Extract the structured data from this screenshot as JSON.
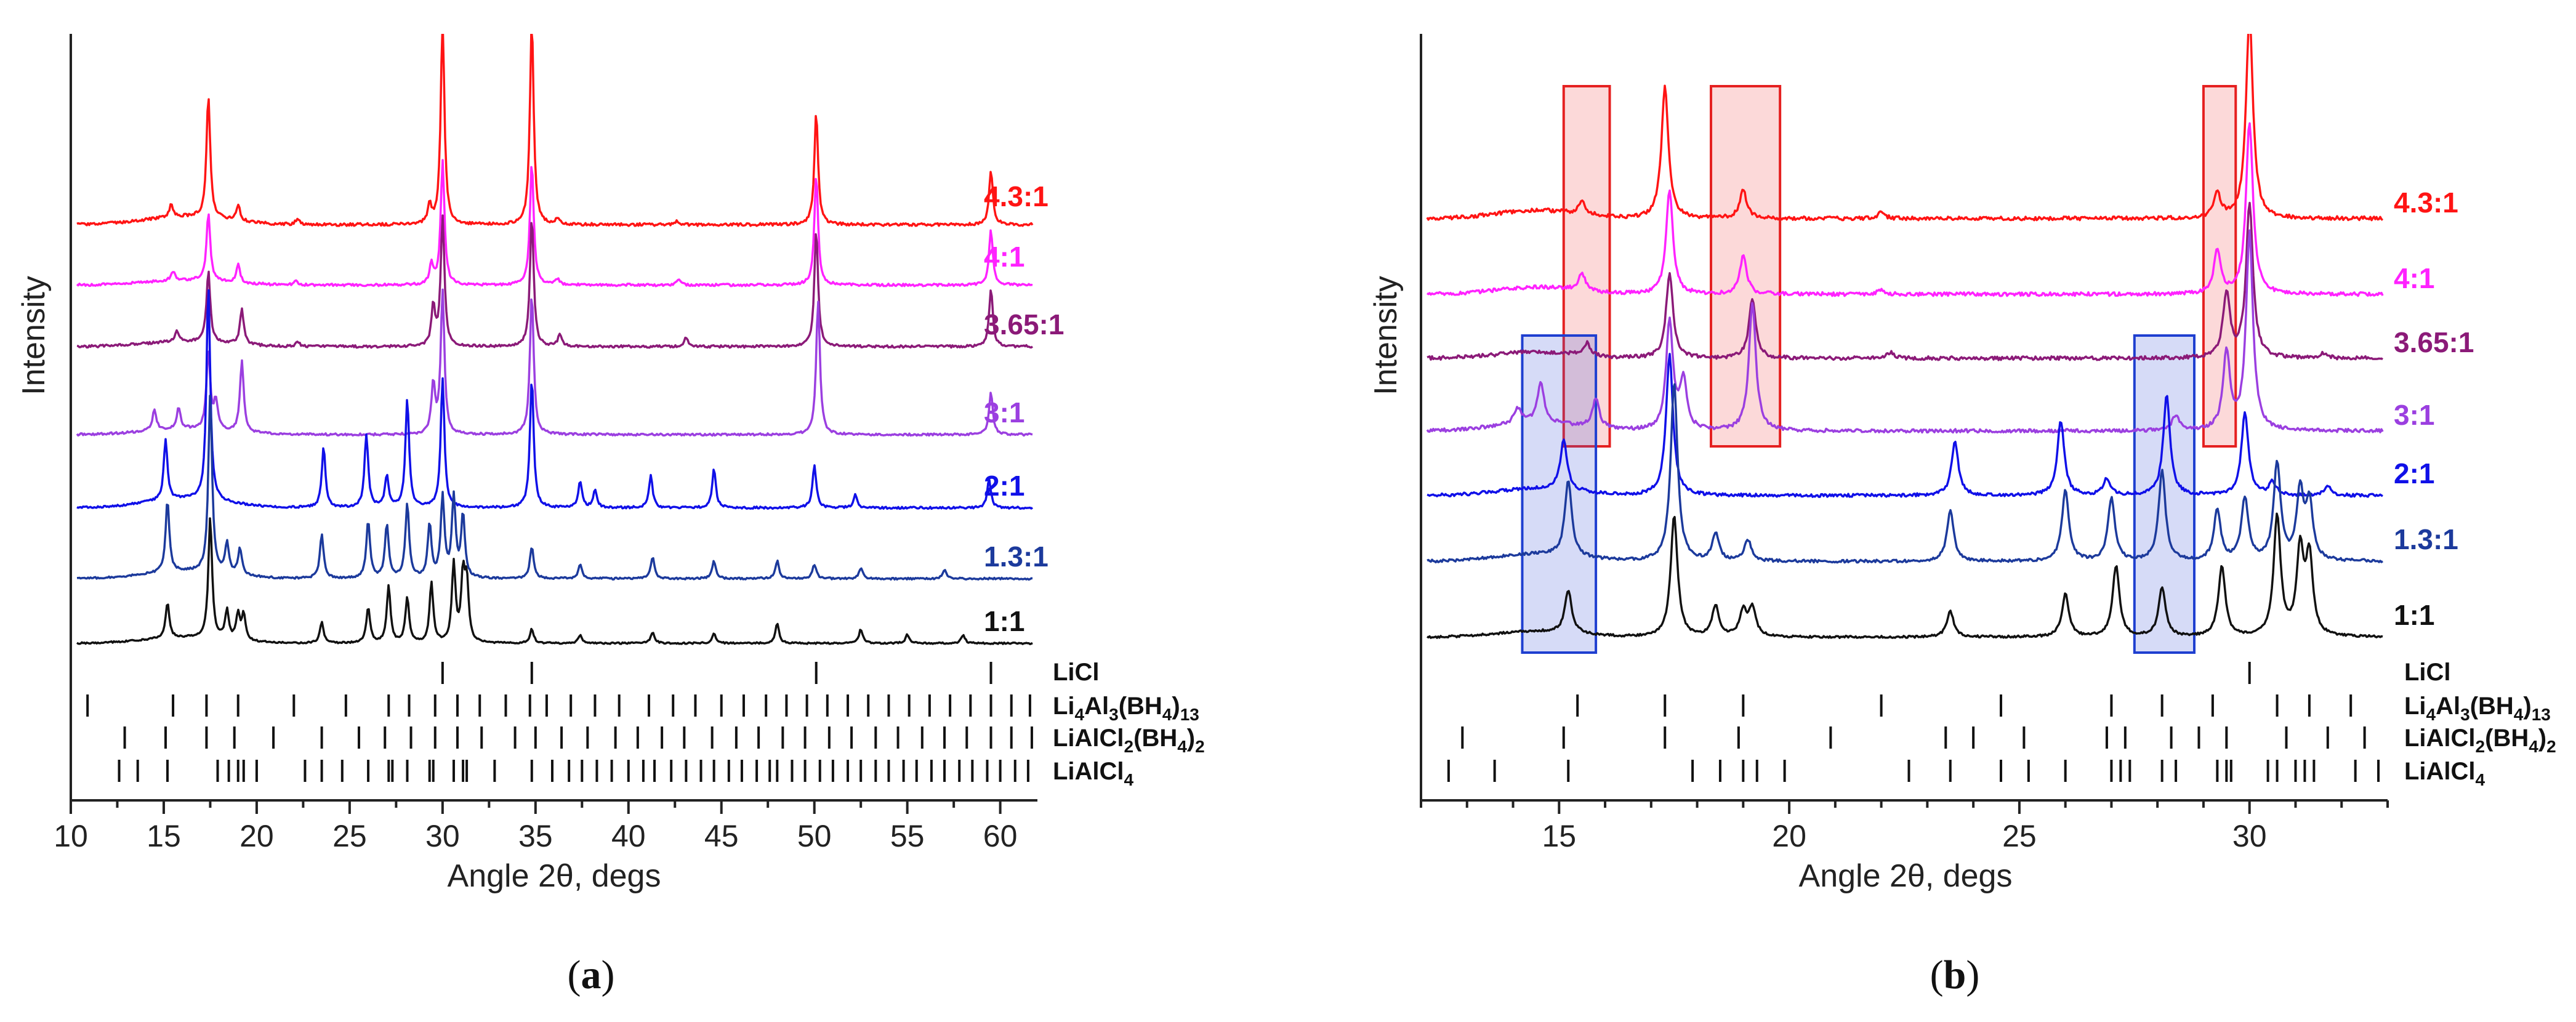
{
  "colors": {
    "4.3:1": "#ff1414",
    "4:1": "#ff22ff",
    "3.65:1": "#8b1a78",
    "3:1": "#9b3fe0",
    "2:1": "#1010e8",
    "1.3:1": "#1c3a9c",
    "1:1": "#111111",
    "red_box": "#e52020",
    "blue_box": "#1f3fd0"
  },
  "chart_data": [
    {
      "panel": "a",
      "type": "line",
      "title": "",
      "xlabel": "Angle 2θ, degs",
      "ylabel": "Intensity",
      "xlim": [
        10,
        62
      ],
      "x_ticks": [
        10,
        15,
        20,
        25,
        30,
        35,
        40,
        45,
        50,
        55,
        60
      ],
      "grid": false,
      "series": [
        {
          "name": "4.3:1",
          "peaks": [
            [
              15.4,
              6
            ],
            [
              17.4,
              60
            ],
            [
              19.0,
              8
            ],
            [
              22.2,
              3
            ],
            [
              29.3,
              9
            ],
            [
              30.0,
              100
            ],
            [
              34.8,
              100
            ],
            [
              36.2,
              3
            ],
            [
              42.6,
              2
            ],
            [
              50.1,
              55
            ],
            [
              59.5,
              27
            ]
          ]
        },
        {
          "name": "4:1",
          "peaks": [
            [
              15.5,
              7
            ],
            [
              17.4,
              55
            ],
            [
              19.0,
              15
            ],
            [
              22.1,
              3
            ],
            [
              29.4,
              16
            ],
            [
              30.0,
              100
            ],
            [
              34.8,
              100
            ],
            [
              36.2,
              5
            ],
            [
              42.7,
              4
            ],
            [
              50.1,
              90
            ],
            [
              59.5,
              45
            ]
          ]
        },
        {
          "name": "3.65:1",
          "peaks": [
            [
              15.7,
              8
            ],
            [
              17.4,
              55
            ],
            [
              19.2,
              28
            ],
            [
              22.2,
              4
            ],
            [
              29.5,
              30
            ],
            [
              30.0,
              100
            ],
            [
              34.8,
              100
            ],
            [
              36.3,
              9
            ],
            [
              43.1,
              7
            ],
            [
              50.1,
              90
            ],
            [
              59.5,
              45
            ]
          ]
        },
        {
          "name": "3:1",
          "peaks": [
            [
              14.5,
              15
            ],
            [
              15.8,
              15
            ],
            [
              17.4,
              55
            ],
            [
              17.8,
              20
            ],
            [
              19.2,
              50
            ],
            [
              29.5,
              35
            ],
            [
              30.0,
              100
            ],
            [
              34.8,
              100
            ],
            [
              50.2,
              95
            ],
            [
              59.5,
              30
            ]
          ]
        },
        {
          "name": "2:1",
          "peaks": [
            [
              15.1,
              28
            ],
            [
              17.4,
              100
            ],
            [
              23.6,
              28
            ],
            [
              25.9,
              34
            ],
            [
              27.0,
              15
            ],
            [
              28.1,
              50
            ],
            [
              30.0,
              60
            ],
            [
              34.8,
              60
            ],
            [
              37.4,
              12
            ],
            [
              38.2,
              8
            ],
            [
              41.2,
              15
            ],
            [
              44.6,
              18
            ],
            [
              50.0,
              20
            ],
            [
              52.2,
              6
            ],
            [
              59.4,
              13
            ]
          ]
        },
        {
          "name": "1.3:1",
          "peaks": [
            [
              15.2,
              40
            ],
            [
              17.5,
              100
            ],
            [
              18.4,
              17
            ],
            [
              19.1,
              15
            ],
            [
              23.5,
              25
            ],
            [
              26.0,
              32
            ],
            [
              27.0,
              30
            ],
            [
              28.1,
              42
            ],
            [
              29.3,
              30
            ],
            [
              30.0,
              45
            ],
            [
              30.6,
              45
            ],
            [
              31.1,
              35
            ],
            [
              34.8,
              18
            ],
            [
              37.4,
              8
            ],
            [
              41.3,
              12
            ],
            [
              44.6,
              10
            ],
            [
              48.0,
              10
            ],
            [
              50.0,
              8
            ],
            [
              52.5,
              6
            ],
            [
              57.0,
              5
            ]
          ]
        },
        {
          "name": "1:1",
          "peaks": [
            [
              15.2,
              25
            ],
            [
              17.5,
              85
            ],
            [
              18.4,
              20
            ],
            [
              19.0,
              18
            ],
            [
              19.3,
              18
            ],
            [
              23.5,
              15
            ],
            [
              26.0,
              25
            ],
            [
              27.1,
              40
            ],
            [
              28.1,
              32
            ],
            [
              29.4,
              42
            ],
            [
              30.6,
              55
            ],
            [
              31.1,
              45
            ],
            [
              31.3,
              40
            ],
            [
              34.8,
              10
            ],
            [
              37.4,
              6
            ],
            [
              41.3,
              8
            ],
            [
              44.6,
              7
            ],
            [
              48.0,
              14
            ],
            [
              52.5,
              10
            ],
            [
              55.0,
              6
            ],
            [
              58.0,
              6
            ]
          ]
        }
      ],
      "references": [
        {
          "name": "LiCl",
          "positions": [
            30.0,
            34.8,
            50.1,
            59.5
          ]
        },
        {
          "name": "Li4Al3(BH4)13",
          "positions": [
            10.9,
            15.5,
            17.3,
            19.0,
            22.0,
            24.8,
            27.1,
            28.2,
            29.6,
            30.8,
            32.0,
            33.4,
            34.7,
            35.6,
            36.9,
            38.2,
            39.5,
            41.1,
            42.4,
            43.6,
            45.0,
            46.2,
            47.4,
            48.5,
            49.6,
            50.7,
            51.8,
            52.9,
            54.0,
            55.1,
            56.2,
            57.3,
            58.4,
            59.5,
            60.6,
            61.6
          ]
        },
        {
          "name": "LiAlCl2(BH4)2",
          "positions": [
            12.9,
            15.1,
            17.3,
            18.8,
            20.9,
            23.5,
            25.5,
            26.9,
            28.3,
            29.6,
            30.8,
            32.1,
            33.9,
            35.0,
            36.4,
            37.8,
            39.3,
            40.5,
            41.8,
            43.0,
            44.5,
            45.8,
            47.0,
            48.3,
            49.5,
            50.8,
            52.0,
            53.3,
            54.5,
            55.8,
            57.0,
            58.2,
            59.5,
            60.6,
            61.7
          ]
        },
        {
          "name": "LiAlCl4",
          "positions": [
            12.6,
            13.6,
            15.2,
            17.9,
            18.5,
            19.0,
            19.3,
            20.0,
            22.6,
            23.5,
            24.6,
            26.0,
            27.1,
            27.3,
            28.1,
            29.3,
            29.5,
            30.6,
            31.1,
            31.3,
            32.8,
            34.8,
            35.9,
            36.8,
            37.5,
            38.3,
            39.1,
            40.0,
            40.8,
            41.4,
            42.3,
            43.1,
            43.9,
            44.6,
            45.4,
            46.1,
            46.9,
            47.6,
            48.0,
            48.8,
            49.5,
            50.3,
            51.0,
            51.8,
            52.5,
            53.3,
            54.0,
            54.8,
            55.5,
            56.3,
            57.0,
            57.8,
            58.5,
            59.3,
            60.0,
            60.8,
            61.5
          ]
        }
      ],
      "legend_placement": "right-of-curves"
    },
    {
      "panel": "b",
      "type": "line",
      "title": "",
      "xlabel": "Angle 2θ, degs",
      "ylabel": "Intensity",
      "xlim": [
        12,
        33
      ],
      "x_ticks": [
        15,
        20,
        25,
        30
      ],
      "grid": false,
      "series": [
        {
          "name": "4.3:1",
          "peaks": [
            [
              15.5,
              6
            ],
            [
              17.3,
              65
            ],
            [
              19.0,
              14
            ],
            [
              22.0,
              3
            ],
            [
              29.3,
              12
            ],
            [
              30.0,
              100
            ]
          ]
        },
        {
          "name": "4:1",
          "peaks": [
            [
              15.5,
              10
            ],
            [
              17.4,
              60
            ],
            [
              19.0,
              22
            ],
            [
              22.0,
              3
            ],
            [
              29.3,
              25
            ],
            [
              30.0,
              100
            ]
          ]
        },
        {
          "name": "3.65:1",
          "peaks": [
            [
              15.6,
              8
            ],
            [
              17.4,
              55
            ],
            [
              19.2,
              38
            ],
            [
              22.2,
              4
            ],
            [
              29.5,
              42
            ],
            [
              30.0,
              100
            ],
            [
              31.6,
              3
            ]
          ]
        },
        {
          "name": "3:1",
          "peaks": [
            [
              14.1,
              8
            ],
            [
              14.6,
              20
            ],
            [
              15.8,
              15
            ],
            [
              17.4,
              55
            ],
            [
              17.7,
              25
            ],
            [
              19.2,
              65
            ],
            [
              28.4,
              8
            ],
            [
              29.5,
              40
            ],
            [
              30.0,
              100
            ]
          ]
        },
        {
          "name": "2:1",
          "peaks": [
            [
              15.1,
              30
            ],
            [
              17.4,
              85
            ],
            [
              23.6,
              32
            ],
            [
              25.9,
              45
            ],
            [
              26.9,
              10
            ],
            [
              28.2,
              60
            ],
            [
              29.9,
              50
            ],
            [
              30.5,
              8
            ],
            [
              31.7,
              6
            ]
          ]
        },
        {
          "name": "1.3:1",
          "peaks": [
            [
              15.2,
              42
            ],
            [
              17.5,
              100
            ],
            [
              18.4,
              15
            ],
            [
              19.1,
              12
            ],
            [
              23.5,
              28
            ],
            [
              26.0,
              40
            ],
            [
              27.0,
              35
            ],
            [
              28.1,
              50
            ],
            [
              29.3,
              28
            ],
            [
              29.9,
              35
            ],
            [
              30.6,
              55
            ],
            [
              31.1,
              38
            ],
            [
              31.3,
              32
            ]
          ]
        },
        {
          "name": "1:1",
          "peaks": [
            [
              15.2,
              30
            ],
            [
              17.5,
              85
            ],
            [
              18.4,
              22
            ],
            [
              19.0,
              18
            ],
            [
              19.2,
              20
            ],
            [
              23.5,
              18
            ],
            [
              26.0,
              30
            ],
            [
              27.1,
              50
            ],
            [
              28.1,
              35
            ],
            [
              29.4,
              50
            ],
            [
              30.6,
              85
            ],
            [
              31.1,
              60
            ],
            [
              31.3,
              55
            ]
          ]
        }
      ],
      "references": [
        {
          "name": "LiCl",
          "positions": [
            30.0
          ]
        },
        {
          "name": "Li4Al3(BH4)13",
          "positions": [
            15.4,
            17.3,
            19.0,
            22.0,
            24.6,
            27.0,
            28.1,
            29.2,
            30.6,
            31.3,
            32.2
          ]
        },
        {
          "name": "LiAlCl2(BH4)2",
          "positions": [
            12.9,
            15.1,
            17.3,
            18.9,
            20.9,
            23.4,
            24.0,
            25.1,
            26.9,
            27.3,
            28.3,
            28.9,
            29.5,
            30.8,
            31.7,
            32.5
          ]
        },
        {
          "name": "LiAlCl4",
          "positions": [
            12.6,
            13.6,
            15.2,
            17.9,
            18.5,
            19.0,
            19.3,
            19.9,
            22.6,
            23.5,
            24.6,
            25.2,
            26.0,
            27.0,
            27.2,
            27.4,
            28.1,
            28.4,
            29.3,
            29.5,
            29.6,
            30.4,
            30.6,
            31.0,
            31.2,
            31.4,
            32.3,
            32.8
          ]
        }
      ],
      "highlight_boxes": [
        {
          "color": "red",
          "x_range": [
            15.1,
            16.1
          ],
          "rows": [
            "4.3:1",
            "3:1"
          ]
        },
        {
          "color": "red",
          "x_range": [
            18.3,
            19.8
          ],
          "rows": [
            "4.3:1",
            "3:1"
          ]
        },
        {
          "color": "red",
          "x_range": [
            29.0,
            29.7
          ],
          "rows": [
            "4.3:1",
            "3:1"
          ]
        },
        {
          "color": "blue",
          "x_range": [
            14.2,
            15.8
          ],
          "rows": [
            "3:1",
            "1:1"
          ]
        },
        {
          "color": "blue",
          "x_range": [
            27.5,
            28.8
          ],
          "rows": [
            "3:1",
            "1:1"
          ]
        }
      ],
      "legend_placement": "right-of-curves"
    }
  ],
  "captions": {
    "a": {
      "open": "(",
      "letter": "a",
      "close": ")"
    },
    "b": {
      "open": "(",
      "letter": "b",
      "close": ")"
    }
  },
  "ref_labels": {
    "licl": "LiCl",
    "li4al3": {
      "a": "Li",
      "b": "4",
      "c": "Al",
      "d": "3",
      "e": "(BH",
      "f": "4",
      "g": ")",
      "h": "13"
    },
    "lialcl2": {
      "a": "LiAlCl",
      "b": "2",
      "c": "(BH",
      "d": "4",
      "e": ")",
      "f": "2"
    },
    "lialcl4": {
      "a": "LiAlCl",
      "b": "4"
    }
  }
}
